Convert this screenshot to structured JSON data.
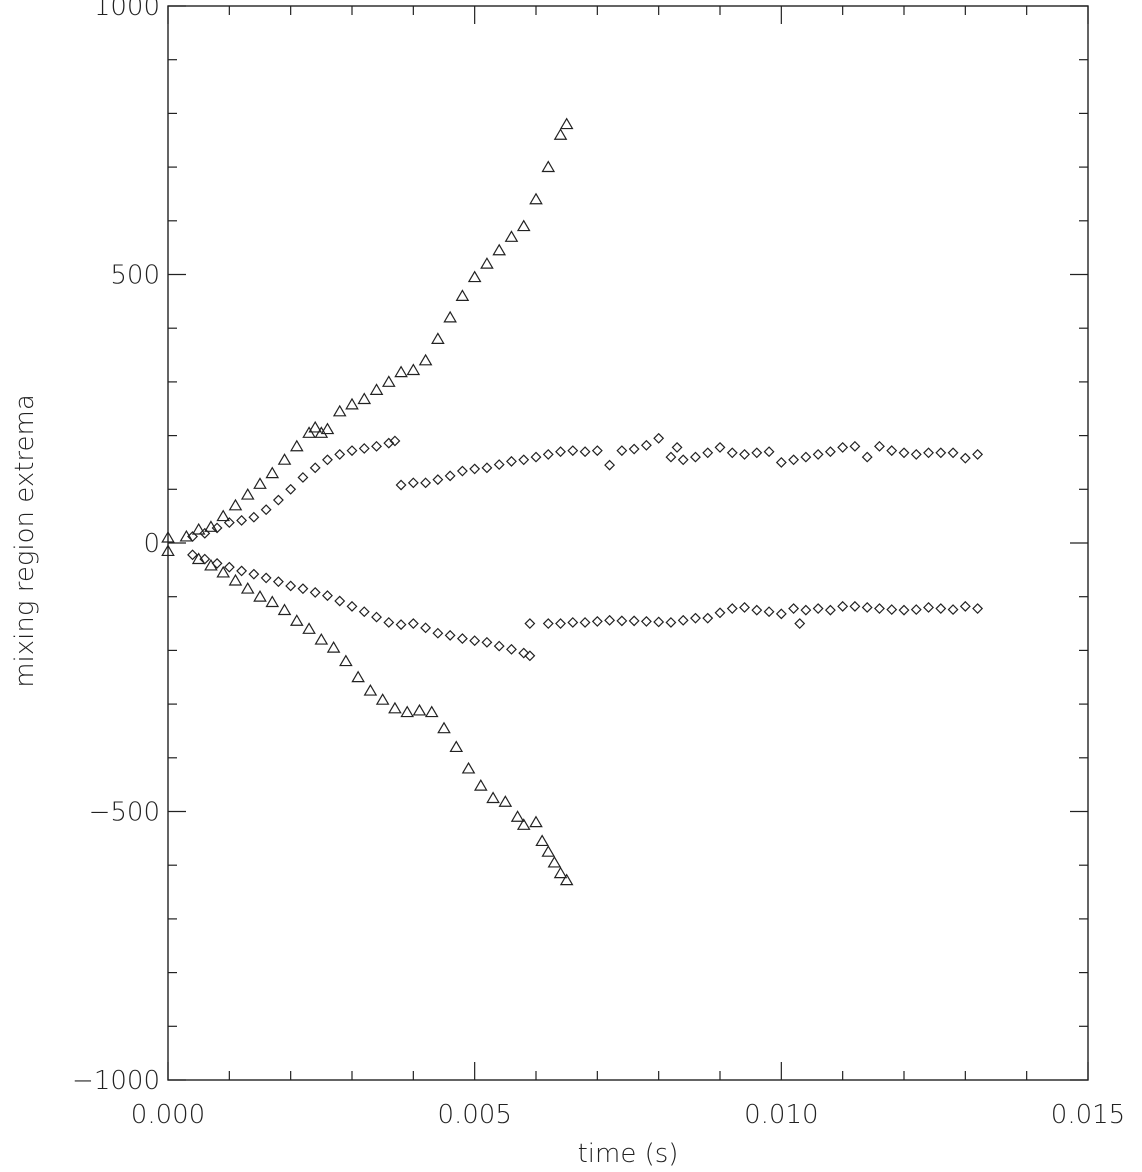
{
  "chart_data": {
    "type": "scatter",
    "title": "",
    "xlabel": "time (s)",
    "ylabel": "mixing region extrema",
    "xlim": [
      0.0,
      0.015
    ],
    "ylim": [
      -1000,
      1000
    ],
    "x_ticks": [
      0.0,
      0.005,
      0.01,
      0.015
    ],
    "x_tick_labels": [
      "0.000",
      "0.005",
      "0.010",
      "0.015"
    ],
    "y_ticks": [
      -1000,
      -500,
      0,
      500,
      1000
    ],
    "y_tick_labels": [
      "−1000",
      "−500",
      "0",
      "500",
      "1000"
    ],
    "x_minor_step": 0.001,
    "y_minor_step": 100,
    "grid": false,
    "legend": "none",
    "series": [
      {
        "marker": "triangle",
        "points": [
          [
            0.0,
            10
          ],
          [
            0.0003,
            12
          ],
          [
            0.0005,
            25
          ],
          [
            0.0007,
            30
          ],
          [
            0.0009,
            50
          ],
          [
            0.0011,
            70
          ],
          [
            0.0013,
            90
          ],
          [
            0.0015,
            110
          ],
          [
            0.0017,
            130
          ],
          [
            0.0019,
            155
          ],
          [
            0.0021,
            180
          ],
          [
            0.0023,
            205
          ],
          [
            0.0024,
            215
          ],
          [
            0.0025,
            205
          ],
          [
            0.0026,
            212
          ],
          [
            0.0028,
            245
          ],
          [
            0.003,
            258
          ],
          [
            0.0032,
            268
          ],
          [
            0.0034,
            285
          ],
          [
            0.0036,
            300
          ],
          [
            0.0038,
            318
          ],
          [
            0.004,
            322
          ],
          [
            0.0042,
            340
          ],
          [
            0.0044,
            380
          ],
          [
            0.0046,
            420
          ],
          [
            0.0048,
            460
          ],
          [
            0.005,
            495
          ],
          [
            0.0052,
            520
          ],
          [
            0.0054,
            545
          ],
          [
            0.0056,
            570
          ],
          [
            0.0058,
            590
          ],
          [
            0.006,
            640
          ],
          [
            0.0062,
            700
          ],
          [
            0.0064,
            760
          ],
          [
            0.0065,
            780
          ]
        ]
      },
      {
        "marker": "triangle",
        "points": [
          [
            0.0,
            -15
          ],
          [
            0.0005,
            -30
          ],
          [
            0.0007,
            -42
          ],
          [
            0.0009,
            -55
          ],
          [
            0.0011,
            -70
          ],
          [
            0.0013,
            -85
          ],
          [
            0.0015,
            -100
          ],
          [
            0.0017,
            -110
          ],
          [
            0.0019,
            -125
          ],
          [
            0.0021,
            -145
          ],
          [
            0.0023,
            -160
          ],
          [
            0.0025,
            -180
          ],
          [
            0.0027,
            -195
          ],
          [
            0.0029,
            -220
          ],
          [
            0.0031,
            -250
          ],
          [
            0.0033,
            -275
          ],
          [
            0.0035,
            -292
          ],
          [
            0.0037,
            -308
          ],
          [
            0.0039,
            -315
          ],
          [
            0.0041,
            -312
          ],
          [
            0.0043,
            -315
          ],
          [
            0.0045,
            -345
          ],
          [
            0.0047,
            -380
          ],
          [
            0.0049,
            -420
          ],
          [
            0.0051,
            -452
          ],
          [
            0.0053,
            -475
          ],
          [
            0.0055,
            -482
          ],
          [
            0.0057,
            -510
          ],
          [
            0.0058,
            -525
          ],
          [
            0.006,
            -520
          ],
          [
            0.0061,
            -555
          ],
          [
            0.0062,
            -575
          ],
          [
            0.0063,
            -595
          ],
          [
            0.0064,
            -615
          ],
          [
            0.0065,
            -628
          ]
        ]
      },
      {
        "marker": "diamond",
        "points": [
          [
            0.0004,
            12
          ],
          [
            0.0006,
            18
          ],
          [
            0.0008,
            28
          ],
          [
            0.001,
            38
          ],
          [
            0.0012,
            42
          ],
          [
            0.0014,
            48
          ],
          [
            0.0016,
            62
          ],
          [
            0.0018,
            80
          ],
          [
            0.002,
            100
          ],
          [
            0.0022,
            122
          ],
          [
            0.0024,
            140
          ],
          [
            0.0026,
            155
          ],
          [
            0.0028,
            165
          ],
          [
            0.003,
            172
          ],
          [
            0.0032,
            176
          ],
          [
            0.0034,
            180
          ],
          [
            0.0036,
            186
          ],
          [
            0.0037,
            190
          ]
        ]
      },
      {
        "marker": "diamond",
        "points": [
          [
            0.0038,
            108
          ],
          [
            0.004,
            112
          ],
          [
            0.0042,
            112
          ],
          [
            0.0044,
            118
          ],
          [
            0.0046,
            125
          ],
          [
            0.0048,
            134
          ],
          [
            0.005,
            138
          ],
          [
            0.0052,
            140
          ],
          [
            0.0054,
            146
          ],
          [
            0.0056,
            152
          ],
          [
            0.0058,
            155
          ],
          [
            0.006,
            160
          ],
          [
            0.0062,
            165
          ],
          [
            0.0064,
            170
          ],
          [
            0.0066,
            172
          ],
          [
            0.0068,
            170
          ],
          [
            0.007,
            172
          ],
          [
            0.0072,
            145
          ],
          [
            0.0074,
            172
          ],
          [
            0.0076,
            175
          ],
          [
            0.0078,
            182
          ],
          [
            0.008,
            195
          ],
          [
            0.0082,
            160
          ],
          [
            0.0083,
            178
          ],
          [
            0.0084,
            155
          ],
          [
            0.0086,
            160
          ],
          [
            0.0088,
            168
          ],
          [
            0.009,
            178
          ],
          [
            0.0092,
            168
          ],
          [
            0.0094,
            165
          ],
          [
            0.0096,
            168
          ],
          [
            0.0098,
            170
          ],
          [
            0.01,
            150
          ],
          [
            0.0102,
            155
          ],
          [
            0.0104,
            160
          ],
          [
            0.0106,
            165
          ],
          [
            0.0108,
            170
          ],
          [
            0.011,
            178
          ],
          [
            0.0112,
            180
          ],
          [
            0.0114,
            160
          ],
          [
            0.0116,
            180
          ],
          [
            0.0118,
            172
          ],
          [
            0.012,
            168
          ],
          [
            0.0122,
            165
          ],
          [
            0.0124,
            168
          ],
          [
            0.0126,
            168
          ],
          [
            0.0128,
            168
          ],
          [
            0.013,
            158
          ],
          [
            0.0132,
            165
          ]
        ]
      },
      {
        "marker": "diamond",
        "points": [
          [
            0.0004,
            -22
          ],
          [
            0.0006,
            -30
          ],
          [
            0.0008,
            -38
          ],
          [
            0.001,
            -45
          ],
          [
            0.0012,
            -52
          ],
          [
            0.0014,
            -58
          ],
          [
            0.0016,
            -65
          ],
          [
            0.0018,
            -72
          ],
          [
            0.002,
            -80
          ],
          [
            0.0022,
            -85
          ],
          [
            0.0024,
            -92
          ],
          [
            0.0026,
            -98
          ],
          [
            0.0028,
            -108
          ],
          [
            0.003,
            -118
          ],
          [
            0.0032,
            -128
          ],
          [
            0.0034,
            -138
          ],
          [
            0.0036,
            -148
          ],
          [
            0.0038,
            -152
          ],
          [
            0.004,
            -150
          ],
          [
            0.0042,
            -158
          ],
          [
            0.0044,
            -168
          ],
          [
            0.0046,
            -172
          ],
          [
            0.0048,
            -178
          ],
          [
            0.005,
            -182
          ],
          [
            0.0052,
            -185
          ],
          [
            0.0054,
            -192
          ],
          [
            0.0056,
            -198
          ],
          [
            0.0058,
            -205
          ],
          [
            0.0059,
            -210
          ]
        ]
      },
      {
        "marker": "diamond",
        "points": [
          [
            0.0059,
            -150
          ],
          [
            0.0062,
            -150
          ],
          [
            0.0064,
            -150
          ],
          [
            0.0066,
            -148
          ],
          [
            0.0068,
            -148
          ],
          [
            0.007,
            -146
          ],
          [
            0.0072,
            -144
          ],
          [
            0.0074,
            -145
          ],
          [
            0.0076,
            -145
          ],
          [
            0.0078,
            -146
          ],
          [
            0.008,
            -147
          ],
          [
            0.0082,
            -148
          ],
          [
            0.0084,
            -144
          ],
          [
            0.0086,
            -140
          ],
          [
            0.0088,
            -140
          ],
          [
            0.009,
            -130
          ],
          [
            0.0092,
            -122
          ],
          [
            0.0094,
            -120
          ],
          [
            0.0096,
            -125
          ],
          [
            0.0098,
            -128
          ],
          [
            0.01,
            -132
          ],
          [
            0.0102,
            -122
          ],
          [
            0.0103,
            -150
          ],
          [
            0.0104,
            -125
          ],
          [
            0.0106,
            -122
          ],
          [
            0.0108,
            -125
          ],
          [
            0.011,
            -118
          ],
          [
            0.0112,
            -118
          ],
          [
            0.0114,
            -120
          ],
          [
            0.0116,
            -122
          ],
          [
            0.0118,
            -124
          ],
          [
            0.012,
            -125
          ],
          [
            0.0122,
            -124
          ],
          [
            0.0124,
            -120
          ],
          [
            0.0126,
            -122
          ],
          [
            0.0128,
            -124
          ],
          [
            0.013,
            -118
          ],
          [
            0.0132,
            -122
          ]
        ]
      }
    ]
  }
}
